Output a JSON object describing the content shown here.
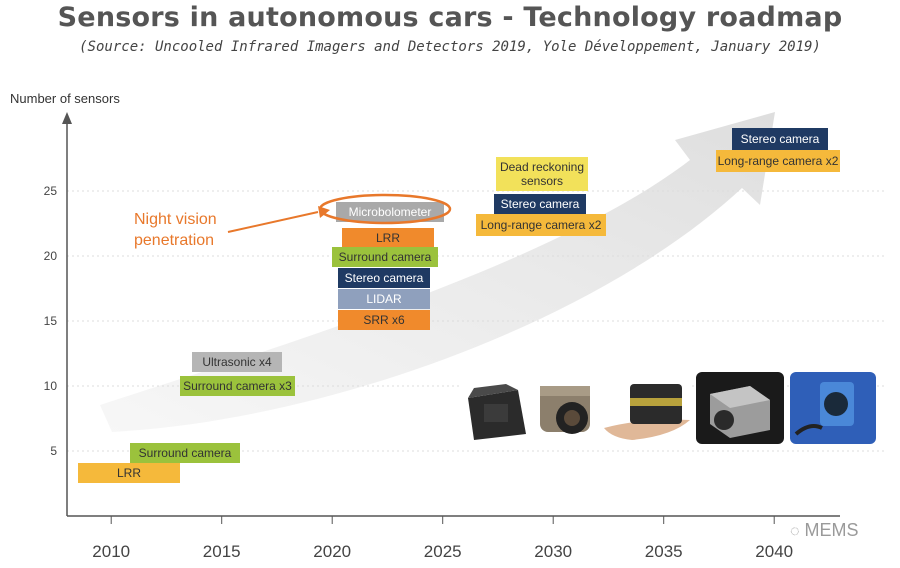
{
  "chart_data": {
    "type": "roadmap",
    "title": "Sensors in autonomous cars - Technology roadmap",
    "subtitle": "(Source: Uncooled Infrared Imagers and Detectors 2019, Yole Développement, January 2019)",
    "ylabel": "Number of sensors",
    "xlim": [
      2008,
      2043
    ],
    "ylim": [
      0,
      30
    ],
    "x_ticks": [
      2010,
      2015,
      2020,
      2025,
      2030,
      2035,
      2040
    ],
    "y_ticks": [
      5,
      10,
      15,
      20,
      25
    ],
    "grid": "horizontal-dotted",
    "annotation": {
      "text_line1": "Night vision",
      "text_line2": "penetration",
      "target": "Microbolometer"
    },
    "stages": [
      {
        "name": "2010",
        "sensors": [
          {
            "label": "Surround camera",
            "color": "#9bc23c"
          },
          {
            "label": "LRR",
            "color": "#f5b93b"
          }
        ]
      },
      {
        "name": "2015",
        "sensors": [
          {
            "label": "Ultrasonic x4",
            "color": "#b5b5b5"
          },
          {
            "label": "Surround camera x3",
            "color": "#9bc23c"
          }
        ]
      },
      {
        "name": "2020",
        "sensors": [
          {
            "label": "Microbolometer",
            "color": "#a9a9a9"
          },
          {
            "label": "LRR",
            "color": "#f08a2c"
          },
          {
            "label": "Surround camera",
            "color": "#9bc23c"
          },
          {
            "label": "Stereo camera",
            "color": "#1f3a63"
          },
          {
            "label": "LIDAR",
            "color": "#8fa0bd"
          },
          {
            "label": "SRR x6",
            "color": "#f08a2c"
          }
        ]
      },
      {
        "name": "2025",
        "sensors": [
          {
            "label": "Dead reckoning sensors",
            "color": "#f2e15a"
          },
          {
            "label": "Stereo camera",
            "color": "#1f3a63"
          },
          {
            "label": "Long-range camera x2",
            "color": "#f5b93b"
          }
        ]
      },
      {
        "name": "2040",
        "sensors": [
          {
            "label": "Stereo camera",
            "color": "#1f3a63"
          },
          {
            "label": "Long-range camera x2",
            "color": "#f5b93b"
          }
        ]
      }
    ]
  },
  "photos": [
    {
      "name": "photo-radar-module"
    },
    {
      "name": "photo-automotive-camera"
    },
    {
      "name": "photo-lidar-in-hand"
    },
    {
      "name": "photo-thermal-camera"
    },
    {
      "name": "photo-blue-sensor-module"
    }
  ],
  "watermark": "MEMS"
}
